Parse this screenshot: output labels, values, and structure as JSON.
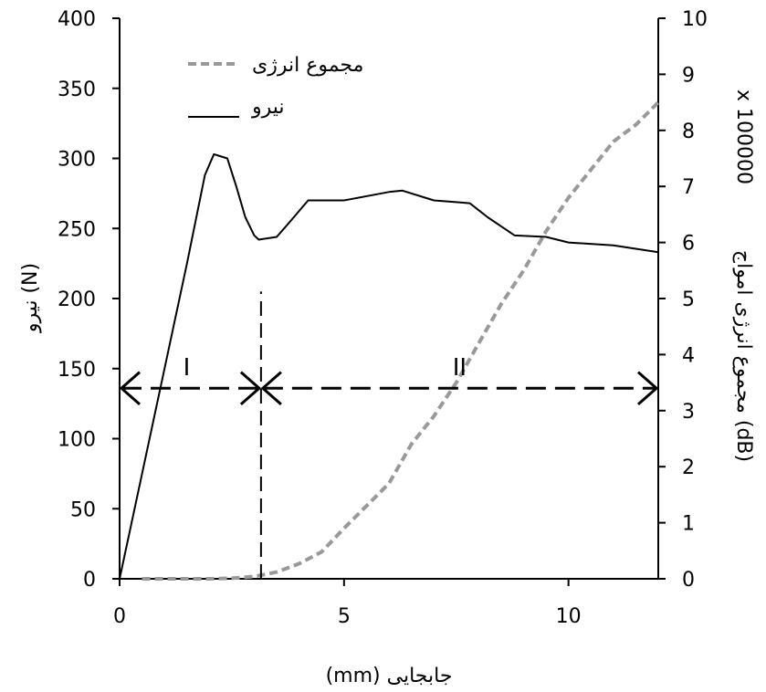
{
  "chart_data": {
    "type": "line",
    "title": "",
    "xlabel": "جابجایی (mm)",
    "ylabel_left": "نیرو (N)",
    "ylabel_right": "مجموع انرژی امواج (dB)",
    "ylabel_right_multiplier": "x 100000",
    "xlim": [
      0,
      12
    ],
    "ylim_left": [
      0,
      400
    ],
    "ylim_right": [
      0,
      10
    ],
    "x_ticks": [
      0,
      5,
      10
    ],
    "y_left_ticks": [
      0,
      50,
      100,
      150,
      200,
      250,
      300,
      350,
      400
    ],
    "y_right_ticks": [
      0,
      1,
      2,
      3,
      4,
      5,
      6,
      7,
      8,
      9,
      10
    ],
    "grid": false,
    "legend_placement": "top-left",
    "series": [
      {
        "name": "مجموع انرژی",
        "axis": "right",
        "style": "dashed",
        "color": "#999999",
        "x": [
          0.5,
          1.0,
          1.5,
          2.0,
          2.5,
          3.0,
          3.5,
          4.0,
          4.5,
          5.0,
          5.5,
          6.0,
          6.5,
          7.0,
          7.5,
          8.0,
          8.5,
          9.0,
          9.5,
          10.0,
          10.5,
          11.0,
          11.5,
          12.0
        ],
        "values": [
          0.0,
          0.0,
          0.0,
          0.0,
          0.01,
          0.04,
          0.12,
          0.27,
          0.48,
          0.9,
          1.3,
          1.7,
          2.4,
          2.9,
          3.5,
          4.2,
          4.9,
          5.5,
          6.2,
          6.8,
          7.3,
          7.8,
          8.1,
          8.5
        ]
      },
      {
        "name": "نیرو",
        "axis": "left",
        "style": "solid",
        "color": "#000000",
        "x": [
          0,
          0.5,
          1.0,
          1.5,
          1.9,
          2.1,
          2.4,
          2.6,
          2.8,
          3.0,
          3.1,
          3.5,
          3.8,
          4.2,
          5.0,
          6.0,
          6.3,
          7.0,
          7.8,
          8.2,
          8.8,
          9.5,
          10.0,
          11.0,
          12.0
        ],
        "values": [
          0,
          75,
          150,
          225,
          288,
          303,
          300,
          280,
          258,
          245,
          242,
          244,
          255,
          270,
          270,
          276,
          277,
          270,
          268,
          258,
          245,
          244,
          240,
          238,
          233
        ]
      }
    ],
    "annotations": [
      {
        "type": "vline",
        "x": 3.15,
        "y_from": 0,
        "y_to": 205,
        "style": "dashed"
      },
      {
        "type": "double-arrow",
        "x_from": 0,
        "x_to": 3.15,
        "y": 136,
        "style": "dashed",
        "label": "I"
      },
      {
        "type": "double-arrow",
        "x_from": 3.15,
        "x_to": 12,
        "y": 136,
        "style": "dashed",
        "label": "II"
      }
    ]
  }
}
